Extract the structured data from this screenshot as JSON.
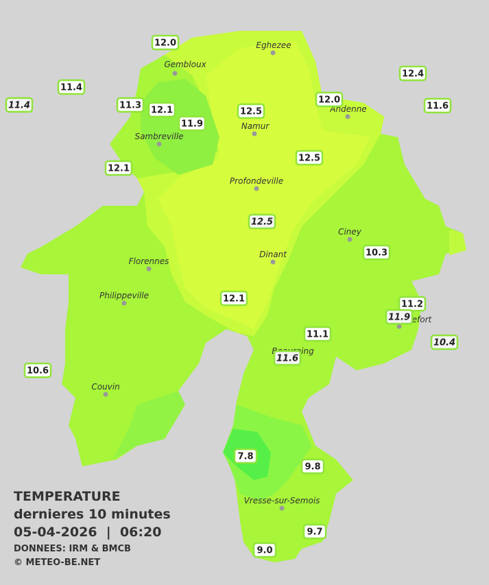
{
  "title": {
    "line1": "TEMPERATURE",
    "line2": "dernieres 10 minutes",
    "line3": "05-04-2026  |  06:20",
    "source": "DONNEES: IRM & BMCB",
    "copyright": "© METEO-BE.NET"
  },
  "cities": [
    "Eghezee",
    "Gembloux",
    "Andenne",
    "Namur",
    "Sambreville",
    "Profondeville",
    "Ciney",
    "Dinant",
    "Florennes",
    "Philippeville",
    "Rochefort",
    "Beauraing",
    "Couvin",
    "Vresse-sur-Semois"
  ],
  "stations": [
    {
      "label": "12.0",
      "italic": false
    },
    {
      "label": "11.4",
      "italic": false
    },
    {
      "label": "11.4",
      "italic": true
    },
    {
      "label": "11.3",
      "italic": false
    },
    {
      "label": "12.1",
      "italic": false
    },
    {
      "label": "11.9",
      "italic": false
    },
    {
      "label": "12.5",
      "italic": false
    },
    {
      "label": "12.0",
      "italic": false
    },
    {
      "label": "12.4",
      "italic": false
    },
    {
      "label": "11.6",
      "italic": false
    },
    {
      "label": "12.1",
      "italic": false
    },
    {
      "label": "12.5",
      "italic": false
    },
    {
      "label": "12.5",
      "italic": true
    },
    {
      "label": "10.3",
      "italic": false
    },
    {
      "label": "12.1",
      "italic": false
    },
    {
      "label": "11.2",
      "italic": false
    },
    {
      "label": "11.9",
      "italic": true
    },
    {
      "label": "10.4",
      "italic": true
    },
    {
      "label": "11.1",
      "italic": false
    },
    {
      "label": "11.6",
      "italic": true
    },
    {
      "label": "10.6",
      "italic": false
    },
    {
      "label": "7.8",
      "italic": false
    },
    {
      "label": "9.8",
      "italic": false
    },
    {
      "label": "9.7",
      "italic": false
    },
    {
      "label": "9.0",
      "italic": false
    }
  ]
}
